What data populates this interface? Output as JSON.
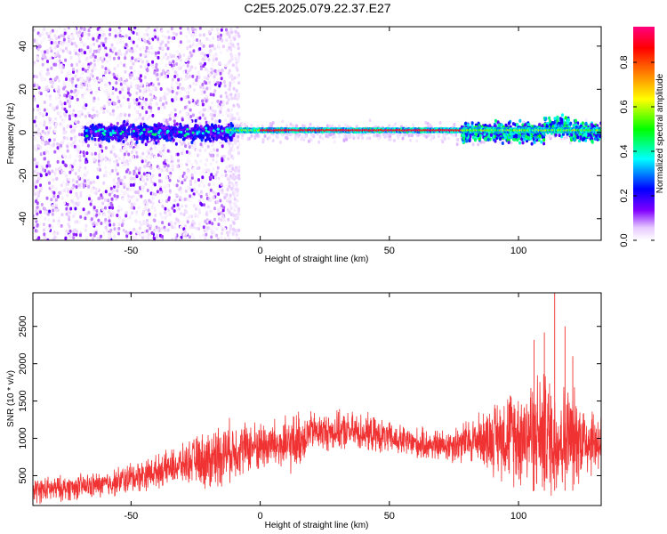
{
  "figure": {
    "title": "C2E5.2025.079.22.37.E27"
  },
  "chart_data": [
    {
      "type": "heatmap",
      "xlabel": "Height of straight line (km)",
      "ylabel": "Frequency (Hz)",
      "xlim": [
        -88,
        132
      ],
      "ylim": [
        -50,
        49
      ],
      "xticks": [
        -50,
        0,
        50,
        100
      ],
      "yticks": [
        -40,
        -20,
        0,
        20,
        40
      ],
      "colorbar": {
        "label": "Normalized spectral amplitude",
        "range": [
          0,
          0.96
        ],
        "ticks": [
          "0.0",
          "0.2",
          "0.4",
          "0.6",
          "0.8"
        ],
        "tick_values": [
          0,
          0.2,
          0.4,
          0.6,
          0.8
        ],
        "colormap": [
          "#ffffff",
          "#e6c8ff",
          "#8000ff",
          "#0000ff",
          "#00ffff",
          "#00ff00",
          "#ffff00",
          "#ff8000",
          "#ff0000",
          "#ff0080"
        ]
      },
      "features": [
        {
          "x_range": [
            -88,
            -13
          ],
          "description": "broadband scattered noise",
          "amplitude_range": [
            0.0,
            0.2
          ]
        },
        {
          "x_range": [
            -68,
            -13
          ],
          "y_center": 0,
          "y_halfwidth": 6,
          "amplitude_range": [
            0.1,
            0.4
          ]
        },
        {
          "x_range": [
            -13,
            78
          ],
          "y_center": 1,
          "y_halfwidth": 2,
          "amplitude_range": [
            0.4,
            0.9
          ]
        },
        {
          "x_range": [
            78,
            132
          ],
          "y_center": 0,
          "y_halfwidth": 8,
          "amplitude_range": [
            0.2,
            0.7
          ]
        }
      ]
    },
    {
      "type": "line",
      "xlabel": "Height of straight line (km)",
      "ylabel": "SNR (10 * v/v)",
      "xlim": [
        -88,
        132
      ],
      "ylim": [
        100,
        2950
      ],
      "xticks": [
        -50,
        0,
        50,
        100
      ],
      "yticks": [
        500,
        1000,
        1500,
        2000,
        2500
      ],
      "color": "#f03232",
      "series": [
        {
          "x": [
            -88,
            -80,
            -70,
            -60,
            -50,
            -40,
            -30,
            -25,
            -20,
            -15,
            -10,
            -5,
            0,
            5,
            10,
            15,
            20,
            25,
            30,
            40,
            50,
            60,
            70,
            80,
            85,
            90,
            95,
            100,
            105,
            110,
            115,
            120,
            125,
            132
          ],
          "y": [
            300,
            320,
            350,
            380,
            470,
            560,
            650,
            720,
            700,
            800,
            850,
            880,
            900,
            920,
            880,
            980,
            1100,
            1080,
            1100,
            1080,
            1000,
            930,
            900,
            950,
            1000,
            1000,
            1050,
            1050,
            1100,
            1050,
            1000,
            1020,
            1000,
            950
          ],
          "spread": [
            200,
            200,
            200,
            200,
            250,
            250,
            300,
            350,
            500,
            500,
            450,
            400,
            400,
            400,
            450,
            450,
            300,
            300,
            300,
            300,
            250,
            250,
            250,
            350,
            400,
            550,
            700,
            800,
            900,
            1000,
            900,
            800,
            650,
            500
          ]
        }
      ],
      "peaks": [
        {
          "x": 106,
          "y": 2320
        },
        {
          "x": 110,
          "y": 2420
        },
        {
          "x": 114,
          "y": 2950
        },
        {
          "x": 118,
          "y": 2500
        },
        {
          "x": 121,
          "y": 2100
        }
      ]
    }
  ]
}
